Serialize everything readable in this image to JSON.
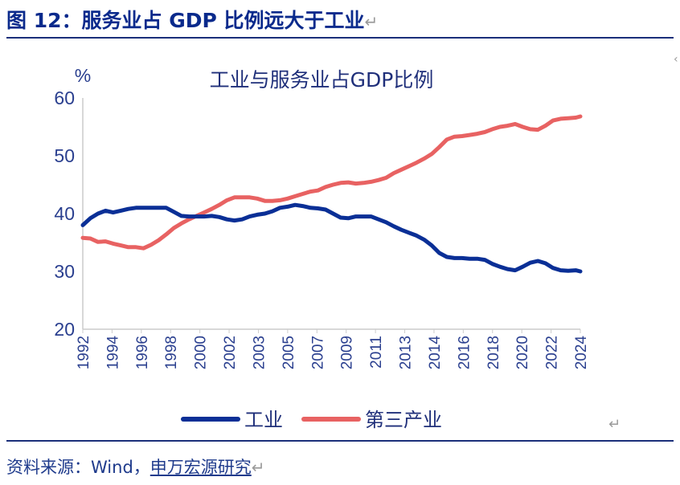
{
  "figure": {
    "title": "图 12：服务业占 GDP 比例远大于工业",
    "return_mark": "↵",
    "source_prefix": "资料来源：Wind，",
    "source_brand": "申万宏源研究"
  },
  "colors": {
    "industry": "#0a2f96",
    "tertiary": "#e86262",
    "axis": "#cccccc",
    "text": "#2a3f8f",
    "title_blue": "#0a2a8c"
  },
  "chart_data": {
    "type": "line",
    "title": "工业与服务业占GDP比例",
    "ylabel": "%",
    "ylim": [
      20,
      60
    ],
    "yticks": [
      20,
      30,
      40,
      50,
      60
    ],
    "xlim": [
      1992,
      2024.8
    ],
    "xtick_labels": [
      "1992",
      "1994",
      "1996",
      "1998",
      "2000",
      "2002",
      "2003",
      "2005",
      "2007",
      "2009",
      "2011",
      "2013",
      "2014",
      "2016",
      "2018",
      "2020",
      "2022",
      "2024"
    ],
    "legend_position": "bottom-center",
    "series": [
      {
        "name": "工业",
        "color": "#0a2f96",
        "x": [
          1992,
          1992.5,
          1993,
          1993.5,
          1994,
          1994.5,
          1995,
          1995.5,
          1996,
          1996.5,
          1997,
          1997.5,
          1998,
          1998.5,
          1999,
          1999.5,
          2000,
          2000.5,
          2001,
          2001.5,
          2002,
          2002.5,
          2003,
          2003.5,
          2004,
          2004.5,
          2005,
          2005.5,
          2006,
          2006.5,
          2007,
          2007.5,
          2008,
          2008.5,
          2009,
          2009.5,
          2010,
          2010.5,
          2011,
          2011.5,
          2012,
          2012.5,
          2013,
          2013.5,
          2014,
          2014.5,
          2015,
          2015.5,
          2016,
          2016.5,
          2017,
          2017.5,
          2018,
          2018.5,
          2019,
          2019.5,
          2020,
          2020.5,
          2021,
          2021.5,
          2022,
          2022.5,
          2023,
          2023.5,
          2024,
          2024.5,
          2024.8
        ],
        "values": [
          38.0,
          39.2,
          40.0,
          40.5,
          40.2,
          40.5,
          40.8,
          41.0,
          41.0,
          41.0,
          41.0,
          41.0,
          40.3,
          39.6,
          39.5,
          39.5,
          39.5,
          39.6,
          39.4,
          39.0,
          38.8,
          39.0,
          39.5,
          39.8,
          40.0,
          40.4,
          41.0,
          41.2,
          41.5,
          41.3,
          41.0,
          40.9,
          40.7,
          40.0,
          39.3,
          39.2,
          39.5,
          39.5,
          39.5,
          39.0,
          38.5,
          37.8,
          37.2,
          36.7,
          36.2,
          35.5,
          34.5,
          33.2,
          32.5,
          32.3,
          32.3,
          32.2,
          32.2,
          32.0,
          31.3,
          30.8,
          30.4,
          30.2,
          30.8,
          31.5,
          31.8,
          31.4,
          30.6,
          30.2,
          30.1,
          30.2,
          30.0
        ]
      },
      {
        "name": "第三产业",
        "color": "#e86262",
        "x": [
          1992,
          1992.5,
          1993,
          1993.5,
          1994,
          1994.5,
          1995,
          1995.5,
          1996,
          1996.5,
          1997,
          1997.5,
          1998,
          1998.5,
          1999,
          1999.5,
          2000,
          2000.5,
          2001,
          2001.5,
          2002,
          2002.5,
          2003,
          2003.5,
          2004,
          2004.5,
          2005,
          2005.5,
          2006,
          2006.5,
          2007,
          2007.5,
          2008,
          2008.5,
          2009,
          2009.5,
          2010,
          2010.5,
          2011,
          2011.5,
          2012,
          2012.5,
          2013,
          2013.5,
          2014,
          2014.5,
          2015,
          2015.5,
          2016,
          2016.5,
          2017,
          2017.5,
          2018,
          2018.5,
          2019,
          2019.5,
          2020,
          2020.5,
          2021,
          2021.5,
          2022,
          2022.5,
          2023,
          2023.5,
          2024,
          2024.5,
          2024.8
        ],
        "values": [
          35.8,
          35.7,
          35.1,
          35.2,
          34.8,
          34.5,
          34.2,
          34.2,
          34.0,
          34.6,
          35.4,
          36.4,
          37.5,
          38.3,
          39.0,
          39.6,
          40.2,
          40.8,
          41.5,
          42.3,
          42.8,
          42.8,
          42.8,
          42.6,
          42.2,
          42.2,
          42.3,
          42.6,
          43.0,
          43.4,
          43.8,
          44.0,
          44.6,
          45.0,
          45.3,
          45.4,
          45.2,
          45.3,
          45.5,
          45.8,
          46.2,
          47.0,
          47.6,
          48.2,
          48.8,
          49.5,
          50.3,
          51.5,
          52.8,
          53.3,
          53.4,
          53.6,
          53.8,
          54.1,
          54.6,
          55.0,
          55.2,
          55.5,
          55.0,
          54.6,
          54.5,
          55.2,
          56.1,
          56.4,
          56.5,
          56.6,
          56.8
        ]
      }
    ]
  }
}
